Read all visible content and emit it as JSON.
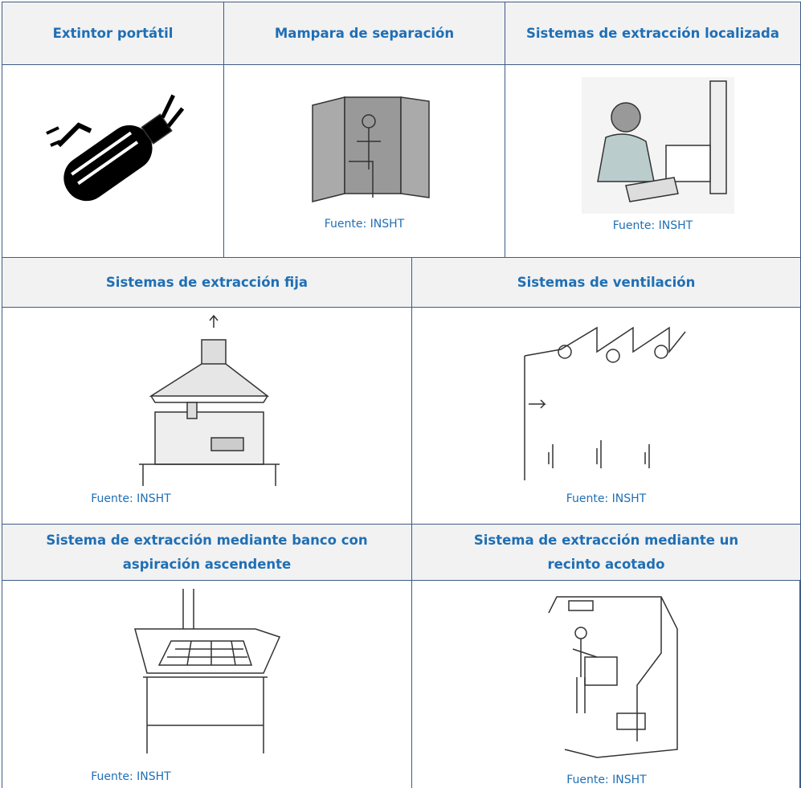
{
  "rows": [
    {
      "cells": [
        {
          "title": "Extintor portátil"
        },
        {
          "title": "Mampara de separación",
          "caption": "Fuente: INSHT"
        },
        {
          "title": "Sistemas de extracción localizada",
          "caption": "Fuente: INSHT"
        }
      ]
    },
    {
      "cells": [
        {
          "title": "Sistemas de extracción fija",
          "caption": "Fuente: INSHT"
        },
        {
          "title": "Sistemas de ventilación",
          "caption": "Fuente: INSHT"
        }
      ]
    },
    {
      "cells": [
        {
          "title": "Sistema de extracción mediante banco con aspiración ascendente",
          "caption": "Fuente: INSHT"
        },
        {
          "title": "Sistema de extracción mediante un recinto acotado",
          "caption": "Fuente: INSHT"
        }
      ]
    }
  ]
}
